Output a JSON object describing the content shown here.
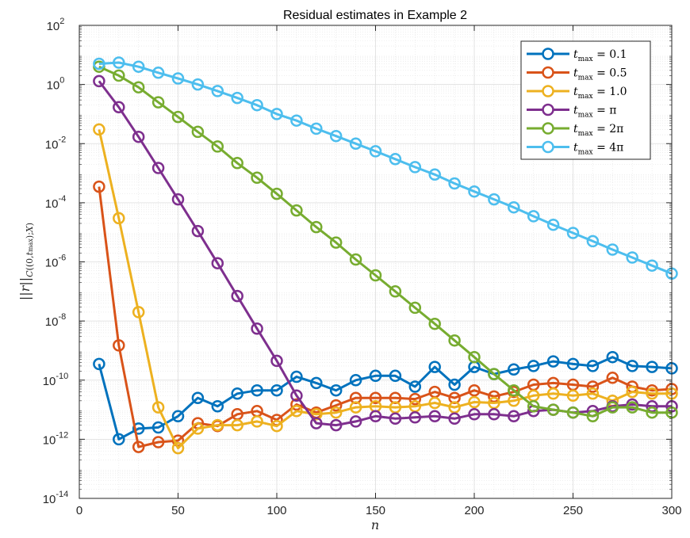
{
  "chart_data": {
    "type": "line",
    "title": "Residual estimates in Example 2",
    "xlabel": "n",
    "ylabel": "||r||_{C((0,t_max);X)}",
    "xlim": [
      0,
      300
    ],
    "ylim": [
      1e-14,
      100
    ],
    "yscale": "log",
    "grid": true,
    "legend_position": "top-right",
    "x_ticks": [
      "0",
      "50",
      "100",
      "150",
      "200",
      "250",
      "300"
    ],
    "y_ticks": [
      {
        "base": "10",
        "exp": "-14"
      },
      {
        "base": "10",
        "exp": "-12"
      },
      {
        "base": "10",
        "exp": "-10"
      },
      {
        "base": "10",
        "exp": "-8"
      },
      {
        "base": "10",
        "exp": "-6"
      },
      {
        "base": "10",
        "exp": "-4"
      },
      {
        "base": "10",
        "exp": "-2"
      },
      {
        "base": "10",
        "exp": "0"
      },
      {
        "base": "10",
        "exp": "2"
      }
    ],
    "x": [
      10,
      20,
      30,
      40,
      50,
      60,
      70,
      80,
      90,
      100,
      110,
      120,
      130,
      140,
      150,
      160,
      170,
      180,
      190,
      200,
      210,
      220,
      230,
      240,
      250,
      260,
      270,
      280,
      290,
      300
    ],
    "series": [
      {
        "name": "t_max = 0.1",
        "legend_value": "0.1",
        "color": "#0072BD",
        "values": [
          3.5e-10,
          1e-12,
          2.3e-12,
          2.5e-12,
          6e-12,
          2.5e-11,
          1.3e-11,
          3.5e-11,
          4.5e-11,
          4.5e-11,
          1.3e-10,
          8e-11,
          4.5e-11,
          1e-10,
          1.4e-10,
          1.4e-10,
          6e-11,
          2.8e-10,
          7e-11,
          2.8e-10,
          1.6e-10,
          2.3e-10,
          3e-10,
          4.3e-10,
          3.5e-10,
          3e-10,
          6e-10,
          3e-10,
          2.8e-10,
          2.5e-10
        ]
      },
      {
        "name": "t_max = 0.5",
        "legend_value": "0.5",
        "color": "#D95319",
        "values": [
          0.00035,
          1.5e-09,
          5.5e-13,
          8e-13,
          9e-13,
          3.5e-12,
          2.8e-12,
          7e-12,
          9e-12,
          4.5e-12,
          1.5e-11,
          8e-12,
          1.4e-11,
          2.5e-11,
          2.5e-11,
          2.5e-11,
          2.3e-11,
          4e-11,
          2.5e-11,
          4.5e-11,
          2.8e-11,
          4e-11,
          7e-11,
          8e-11,
          7e-11,
          6e-11,
          1.2e-10,
          6e-11,
          4.5e-11,
          5e-11
        ]
      },
      {
        "name": "t_max = 1.0",
        "legend_value": "1.0",
        "color": "#EDB120",
        "values": [
          0.03,
          3e-05,
          2e-08,
          1.2e-11,
          5e-13,
          2.3e-12,
          3e-12,
          3e-12,
          4e-12,
          2.8e-12,
          9e-12,
          7e-12,
          8e-12,
          1.2e-11,
          1.3e-11,
          1.2e-11,
          1.3e-11,
          1.7e-11,
          1.2e-11,
          1.8e-11,
          1.7e-11,
          2e-11,
          3e-11,
          3.5e-11,
          3e-11,
          3.5e-11,
          2e-11,
          4e-11,
          3.5e-11,
          3.5e-11
        ]
      },
      {
        "name": "t_max = π",
        "legend_value": "π",
        "color": "#7E2F8E",
        "values": [
          1.3,
          0.17,
          0.017,
          0.0015,
          0.00013,
          1.1e-05,
          9e-07,
          7e-08,
          5.5e-09,
          4.5e-10,
          3e-11,
          3.5e-12,
          3e-12,
          4e-12,
          6e-12,
          5e-12,
          5.5e-12,
          6e-12,
          5e-12,
          7e-12,
          7e-12,
          6e-12,
          9e-12,
          1e-11,
          8e-12,
          9e-12,
          1.3e-11,
          1.5e-11,
          1.3e-11,
          1.3e-11
        ]
      },
      {
        "name": "t_max = 2π",
        "legend_value": "2π",
        "color": "#77AC30",
        "values": [
          4,
          2,
          0.8,
          0.25,
          0.08,
          0.025,
          0.008,
          0.0022,
          0.0007,
          0.0002,
          5.5e-05,
          1.5e-05,
          4.5e-06,
          1.2e-06,
          3.5e-07,
          1e-07,
          2.8e-08,
          8e-09,
          2.2e-09,
          6e-10,
          1.6e-10,
          4.5e-11,
          1.3e-11,
          1e-11,
          8e-12,
          6e-12,
          1.2e-11,
          1.2e-11,
          8e-12,
          8e-12
        ]
      },
      {
        "name": "t_max = 4π",
        "legend_value": "4π",
        "color": "#4DBEEE",
        "values": [
          5,
          5.5,
          4,
          2.5,
          1.6,
          1,
          0.6,
          0.35,
          0.2,
          0.1,
          0.06,
          0.032,
          0.018,
          0.01,
          0.0055,
          0.003,
          0.0016,
          0.0009,
          0.00045,
          0.00024,
          0.00013,
          7e-05,
          3.5e-05,
          1.8e-05,
          9.5e-06,
          5e-06,
          2.6e-06,
          1.4e-06,
          7.5e-07,
          4e-07
        ]
      }
    ]
  }
}
